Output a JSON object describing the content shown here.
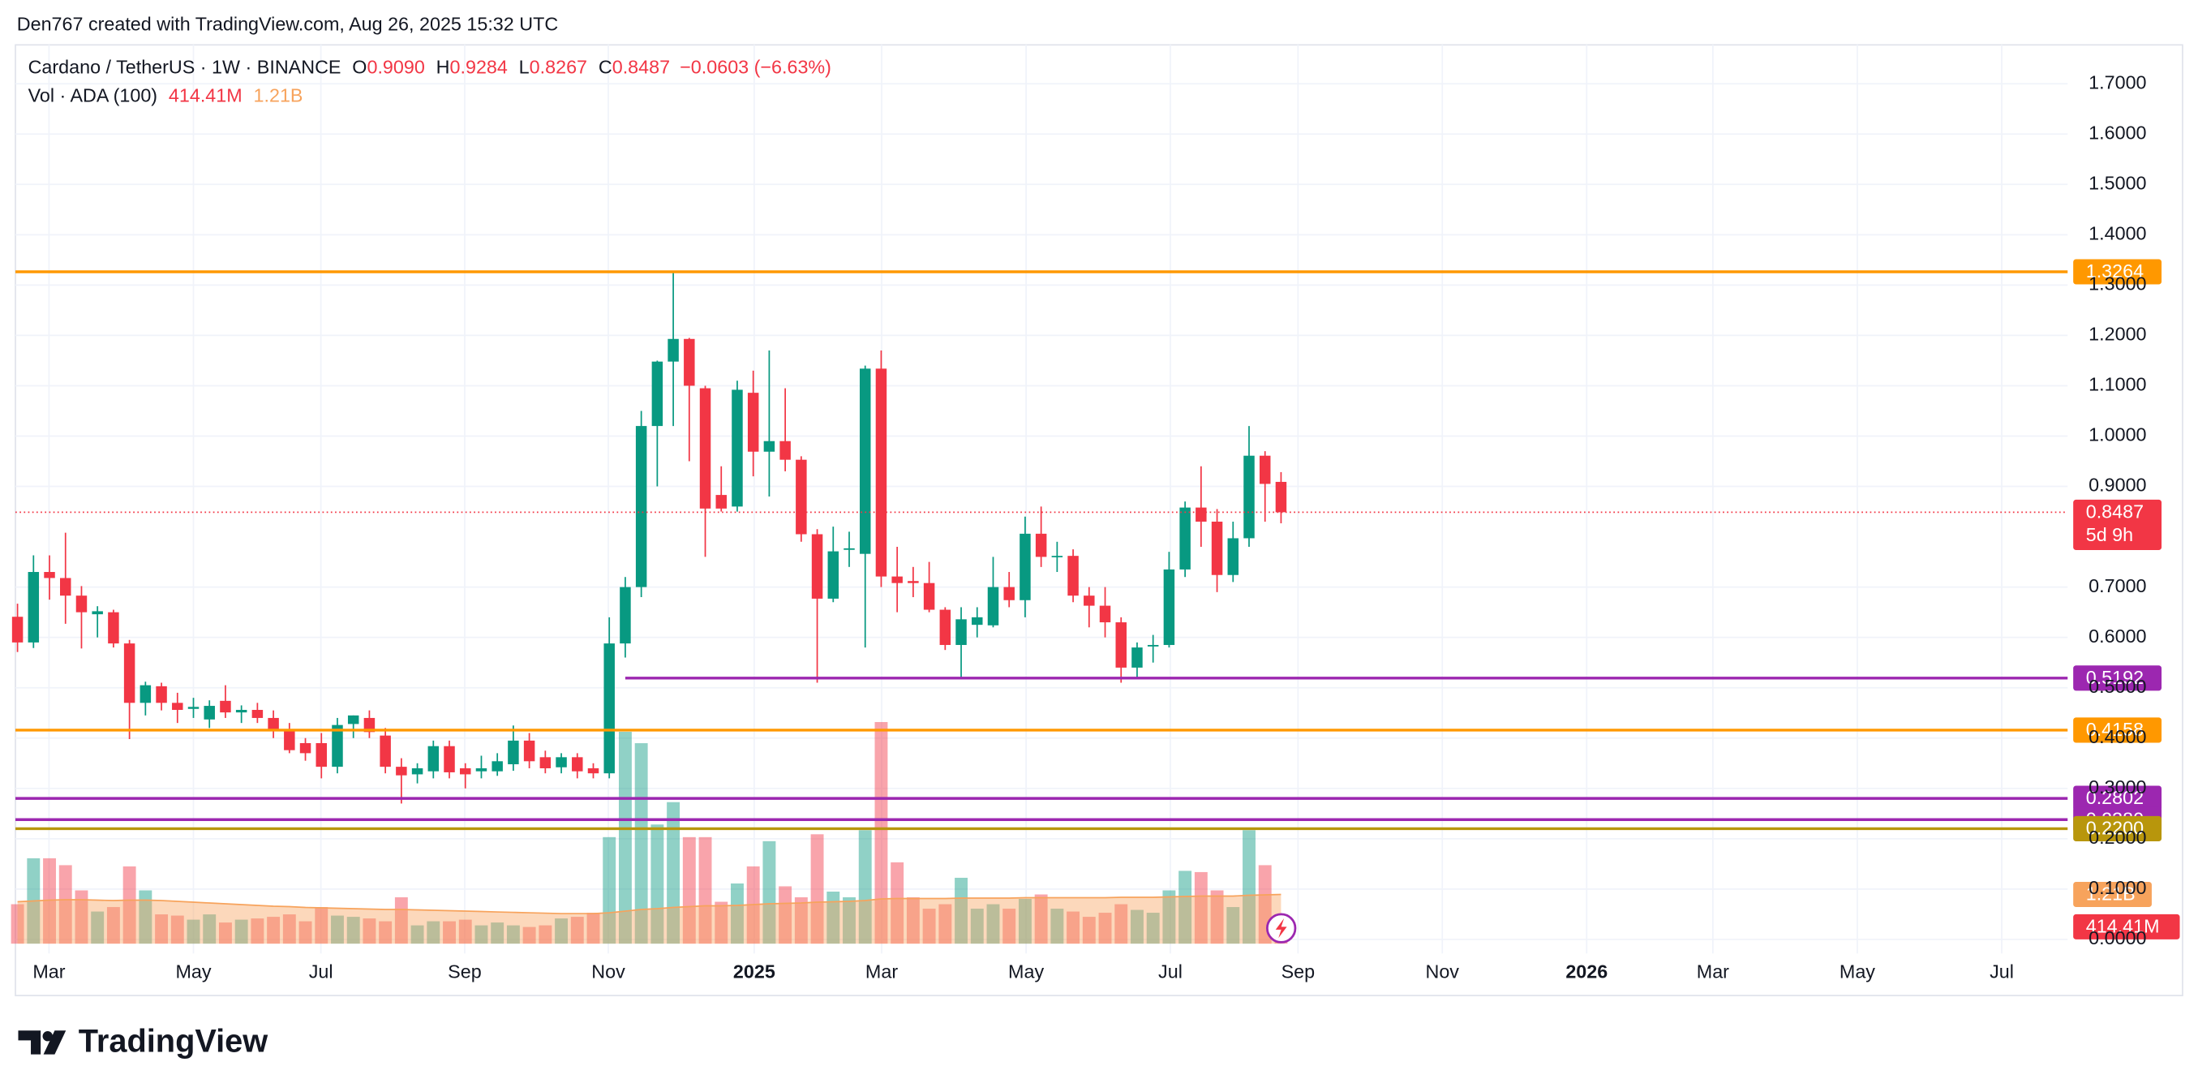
{
  "chart_data": {
    "type": "candlestick",
    "credit": "Den767 created with TradingView.com, Aug 26, 2025 15:32 UTC",
    "brand": "TradingView",
    "legend": {
      "symbol": "Cardano / TetherUS · 1W · BINANCE",
      "ohlc": [
        {
          "key": "O",
          "label": "0.9090"
        },
        {
          "key": "H",
          "label": "0.9284"
        },
        {
          "key": "L",
          "label": "0.8267"
        },
        {
          "key": "C",
          "label": "0.8487"
        }
      ],
      "change": "−0.0603 (−6.63%)"
    },
    "up_color": "#089981",
    "down_color": "#f23645",
    "open": [
      0.641,
      0.59,
      0.73,
      0.718,
      0.683,
      0.646,
      0.65,
      0.588,
      0.47,
      0.503,
      0.47,
      0.458,
      0.437,
      0.474,
      0.451,
      0.456,
      0.44,
      0.418,
      0.39,
      0.39,
      0.343,
      0.428,
      0.44,
      0.405,
      0.343,
      0.328,
      0.334,
      0.384,
      0.34,
      0.334,
      0.334,
      0.348,
      0.395,
      0.362,
      0.342,
      0.362,
      0.34,
      0.33,
      0.588,
      0.7,
      1.02,
      1.148,
      1.193,
      1.095,
      0.883,
      0.86,
      1.086,
      0.969,
      0.99,
      0.953,
      0.805,
      0.677,
      0.774,
      0.766,
      1.134,
      0.721,
      0.712,
      0.708,
      0.655,
      0.585,
      0.625,
      0.624,
      0.7,
      0.674,
      0.806,
      0.76,
      0.762,
      0.683,
      0.663,
      0.63,
      0.54,
      0.582,
      0.585,
      0.735,
      0.858,
      0.83,
      0.724,
      0.797,
      0.961,
      0.909
    ],
    "high": [
      0.667,
      0.763,
      0.763,
      0.808,
      0.702,
      0.662,
      0.655,
      0.595,
      0.512,
      0.51,
      0.49,
      0.48,
      0.475,
      0.505,
      0.465,
      0.47,
      0.455,
      0.43,
      0.4,
      0.41,
      0.44,
      0.445,
      0.455,
      0.42,
      0.36,
      0.35,
      0.395,
      0.395,
      0.35,
      0.365,
      0.37,
      0.425,
      0.41,
      0.375,
      0.37,
      0.37,
      0.35,
      0.64,
      0.72,
      1.05,
      1.15,
      1.3264,
      1.195,
      1.1,
      0.94,
      1.11,
      1.13,
      1.17,
      1.095,
      0.96,
      0.815,
      0.82,
      0.81,
      1.14,
      1.17,
      0.78,
      0.74,
      0.75,
      0.66,
      0.66,
      0.66,
      0.76,
      0.73,
      0.84,
      0.86,
      0.79,
      0.775,
      0.7,
      0.7,
      0.64,
      0.59,
      0.605,
      0.77,
      0.87,
      0.94,
      0.855,
      0.83,
      1.02,
      0.97,
      0.9284
    ],
    "low": [
      0.571,
      0.579,
      0.675,
      0.627,
      0.578,
      0.6,
      0.58,
      0.398,
      0.445,
      0.455,
      0.43,
      0.44,
      0.42,
      0.44,
      0.43,
      0.43,
      0.4,
      0.37,
      0.355,
      0.32,
      0.33,
      0.4,
      0.4,
      0.33,
      0.27,
      0.31,
      0.32,
      0.32,
      0.3,
      0.32,
      0.325,
      0.335,
      0.34,
      0.33,
      0.33,
      0.32,
      0.32,
      0.32,
      0.56,
      0.68,
      0.9,
      1.02,
      0.95,
      0.76,
      0.85,
      0.85,
      0.92,
      0.88,
      0.93,
      0.79,
      0.51,
      0.67,
      0.74,
      0.58,
      0.7,
      0.65,
      0.68,
      0.65,
      0.575,
      0.52,
      0.6,
      0.62,
      0.66,
      0.64,
      0.74,
      0.73,
      0.67,
      0.62,
      0.6,
      0.51,
      0.52,
      0.55,
      0.58,
      0.72,
      0.78,
      0.69,
      0.71,
      0.78,
      0.83,
      0.8267
    ],
    "close": [
      0.59,
      0.73,
      0.718,
      0.683,
      0.65,
      0.652,
      0.588,
      0.47,
      0.505,
      0.47,
      0.456,
      0.462,
      0.464,
      0.451,
      0.456,
      0.44,
      0.418,
      0.376,
      0.37,
      0.343,
      0.426,
      0.445,
      0.412,
      0.343,
      0.326,
      0.34,
      0.384,
      0.332,
      0.328,
      0.34,
      0.354,
      0.395,
      0.354,
      0.34,
      0.362,
      0.334,
      0.33,
      0.588,
      0.7,
      1.02,
      1.148,
      1.193,
      1.1,
      0.856,
      0.856,
      1.092,
      0.969,
      0.99,
      0.953,
      0.805,
      0.677,
      0.771,
      0.777,
      1.134,
      0.721,
      0.708,
      0.708,
      0.655,
      0.585,
      0.636,
      0.64,
      0.7,
      0.674,
      0.806,
      0.76,
      0.762,
      0.683,
      0.663,
      0.63,
      0.54,
      0.58,
      0.585,
      0.735,
      0.858,
      0.83,
      0.724,
      0.797,
      0.961,
      0.905,
      0.8487
    ],
    "countdown": "5d 9h",
    "volume": {
      "name": "Vol · ADA (100)",
      "values": [
        0.97,
        2.1,
        2.1,
        1.93,
        1.31,
        0.79,
        0.9,
        1.9,
        1.31,
        0.72,
        0.69,
        0.59,
        0.72,
        0.52,
        0.59,
        0.62,
        0.66,
        0.72,
        0.55,
        0.9,
        0.69,
        0.66,
        0.62,
        0.55,
        1.14,
        0.45,
        0.55,
        0.55,
        0.59,
        0.45,
        0.52,
        0.45,
        0.41,
        0.45,
        0.62,
        0.66,
        0.76,
        2.62,
        5.21,
        4.93,
        2.93,
        3.48,
        2.62,
        2.62,
        1.03,
        1.48,
        1.9,
        2.52,
        1.41,
        1.14,
        2.69,
        1.28,
        1.14,
        2.79,
        5.45,
        2.0,
        1.14,
        0.86,
        0.97,
        1.62,
        0.86,
        0.97,
        0.86,
        1.1,
        1.21,
        0.86,
        0.79,
        0.66,
        0.76,
        0.97,
        0.83,
        0.76,
        1.31,
        1.79,
        1.76,
        1.31,
        0.9,
        2.79,
        1.93,
        0.41441
      ],
      "last_label": "414.41M",
      "ma": {
        "color": "#f7a35c",
        "values": [
          1.03,
          1.05,
          1.07,
          1.08,
          1.08,
          1.07,
          1.06,
          1.07,
          1.07,
          1.06,
          1.04,
          1.02,
          1.0,
          0.98,
          0.96,
          0.94,
          0.92,
          0.91,
          0.89,
          0.88,
          0.87,
          0.86,
          0.85,
          0.84,
          0.84,
          0.83,
          0.82,
          0.81,
          0.8,
          0.79,
          0.78,
          0.77,
          0.76,
          0.75,
          0.74,
          0.74,
          0.74,
          0.76,
          0.8,
          0.84,
          0.86,
          0.89,
          0.91,
          0.93,
          0.93,
          0.94,
          0.96,
          0.98,
          0.99,
          1.0,
          1.02,
          1.03,
          1.04,
          1.06,
          1.1,
          1.11,
          1.11,
          1.11,
          1.11,
          1.12,
          1.12,
          1.12,
          1.12,
          1.13,
          1.13,
          1.13,
          1.13,
          1.13,
          1.13,
          1.14,
          1.14,
          1.14,
          1.15,
          1.16,
          1.17,
          1.17,
          1.17,
          1.19,
          1.2,
          1.21
        ],
        "last_label": "1.21B"
      }
    },
    "hlines": [
      {
        "value": 1.3264,
        "color": "#ff9800"
      },
      {
        "value": 0.5192,
        "color": "#9c27b0",
        "start": 38
      },
      {
        "value": 0.4158,
        "color": "#ff9800"
      },
      {
        "value": 0.2802,
        "color": "#9c27b0"
      },
      {
        "value": 0.238,
        "label": "0.2380",
        "color": "#9c27b0"
      },
      {
        "value": 0.22,
        "label": "0.2200",
        "color": "#b8960c"
      }
    ],
    "xlim": [
      -0.13,
      128.18
    ],
    "xticks": [
      {
        "value": 1.97,
        "label": "Mar"
      },
      {
        "value": 11.0,
        "label": "May"
      },
      {
        "value": 18.97,
        "label": "Jul"
      },
      {
        "value": 27.96,
        "label": "Sep"
      },
      {
        "value": 36.94,
        "label": "Nov"
      },
      {
        "value": 46.06,
        "label": "2025"
      },
      {
        "value": 54.03,
        "label": "Mar"
      },
      {
        "value": 63.06,
        "label": "May"
      },
      {
        "value": 72.08,
        "label": "Jul"
      },
      {
        "value": 80.06,
        "label": "Sep"
      },
      {
        "value": 89.08,
        "label": "Nov"
      },
      {
        "value": 98.11,
        "label": "2026"
      },
      {
        "value": 106.0,
        "label": "Mar"
      },
      {
        "value": 115.03,
        "label": "May"
      },
      {
        "value": 124.06,
        "label": "Jul"
      }
    ],
    "ylim": [
      -0.0279,
      1.7772
    ],
    "yticks": [
      {
        "value": 0,
        "label": "0.0000"
      },
      {
        "value": 0.1,
        "label": "0.1000"
      },
      {
        "value": 0.2,
        "label": "0.2000"
      },
      {
        "value": 0.3,
        "label": "0.3000"
      },
      {
        "value": 0.4,
        "label": "0.4000"
      },
      {
        "value": 0.5,
        "label": "0.5000"
      },
      {
        "value": 0.6,
        "label": "0.6000"
      },
      {
        "value": 0.7,
        "label": "0.7000"
      },
      {
        "value": 0.9,
        "label": "0.9000"
      },
      {
        "value": 1.0,
        "label": "1.0000"
      },
      {
        "value": 1.1,
        "label": "1.1000"
      },
      {
        "value": 1.2,
        "label": "1.2000"
      },
      {
        "value": 1.3,
        "label": "1.3000"
      },
      {
        "value": 1.4,
        "label": "1.4000"
      },
      {
        "value": 1.5,
        "label": "1.5000"
      },
      {
        "value": 1.6,
        "label": "1.6000"
      },
      {
        "value": 1.7,
        "label": "1.7000"
      }
    ],
    "y2lim": [
      0,
      5.5
    ],
    "grid": true
  }
}
